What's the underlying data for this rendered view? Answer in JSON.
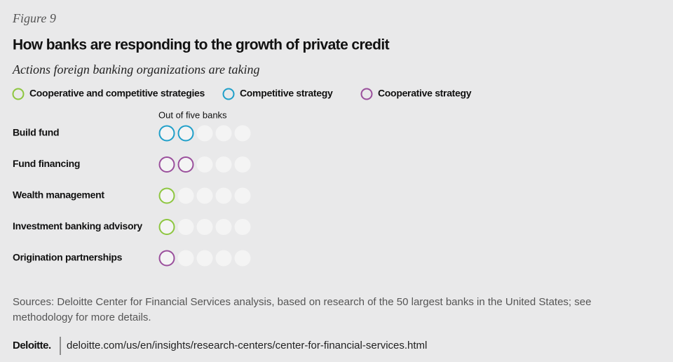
{
  "figure_label": "Figure 9",
  "chart_data": {
    "type": "dotplot",
    "title": "How banks are responding to the growth of private credit",
    "subtitle": "Actions foreign banking organizations are taking",
    "axis_note": "Out of five banks",
    "categories": [
      "Build fund",
      "Fund financing",
      "Wealth management",
      "Investment banking advisory",
      "Origination partnerships"
    ],
    "xlim": [
      0,
      5
    ],
    "empty_color": "#f4f4f4",
    "series": [
      {
        "name": "Cooperative and competitive strategies",
        "color": "#8dc63f",
        "values": [
          null,
          null,
          1,
          1,
          null
        ]
      },
      {
        "name": "Competitive strategy",
        "color": "#1f9fc9",
        "values": [
          2,
          null,
          null,
          null,
          null
        ]
      },
      {
        "name": "Cooperative strategy",
        "color": "#9a4f9c",
        "values": [
          null,
          2,
          null,
          null,
          1
        ]
      }
    ]
  },
  "source": "Sources: Deloitte Center for Financial Services analysis, based on research of the 50 largest banks in the United States; see methodology for more details.",
  "footer": {
    "logo": "Deloitte.",
    "url": "deloitte.com/us/en/insights/research-centers/center-for-financial-services.html"
  }
}
